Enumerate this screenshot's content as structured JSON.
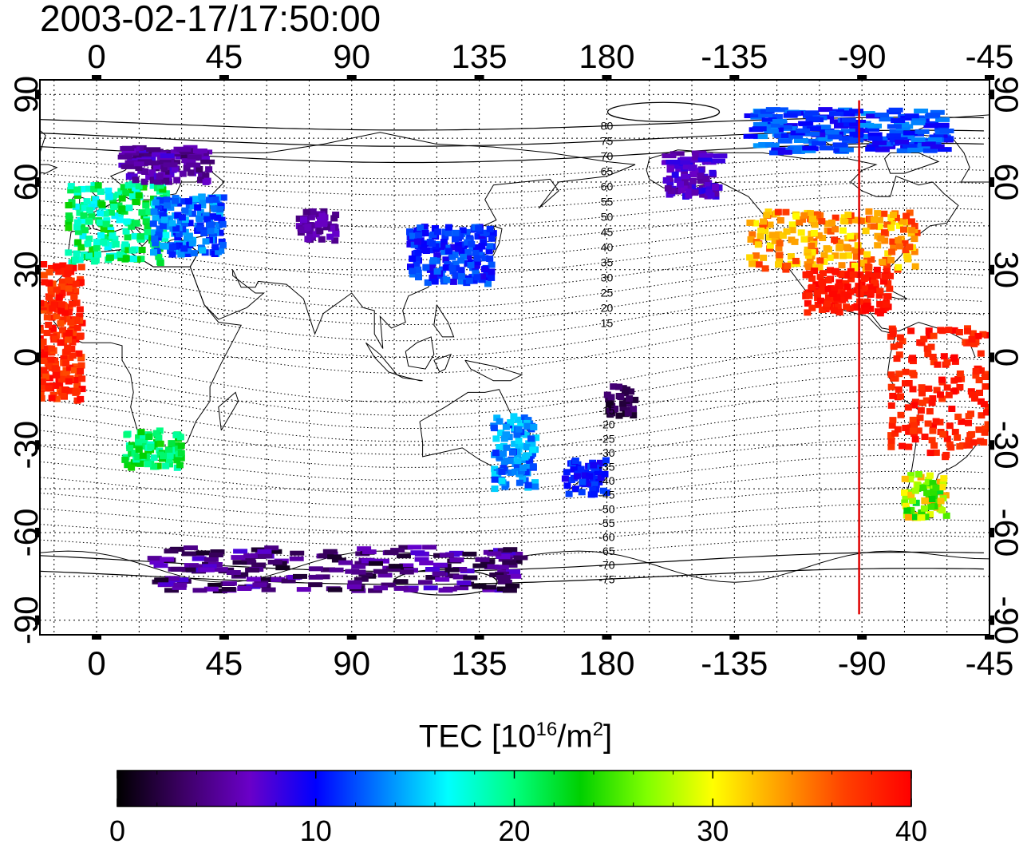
{
  "timestamp": "2003-02-17/17:50:00",
  "colorbar": {
    "title_prefix": "TEC  [10",
    "title_exp1": "16",
    "title_mid": "/m",
    "title_exp2": "2",
    "title_suffix": "]",
    "min": 0,
    "max": 40,
    "ticks": [
      "0",
      "10",
      "20",
      "30",
      "40"
    ],
    "colors": [
      "#000000",
      "#3d0066",
      "#6a00c8",
      "#0000ff",
      "#0080ff",
      "#00ffff",
      "#00ff80",
      "#00d000",
      "#80ff00",
      "#ffff00",
      "#ffa000",
      "#ff4000",
      "#ff0000"
    ]
  },
  "map": {
    "lon_ticks": [
      "0",
      "45",
      "90",
      "135",
      "180",
      "-135",
      "-90",
      "-45"
    ],
    "lat_ticks": [
      "90",
      "60",
      "30",
      "0",
      "-30",
      "-60",
      "-90"
    ],
    "lon_range": [
      -20,
      315
    ],
    "lat_range": [
      -95,
      95
    ],
    "marker_lon": -91,
    "marker_color": "#e00000",
    "contour_labels_north": [
      "80",
      "75",
      "70",
      "65",
      "60",
      "55",
      "50",
      "45",
      "40",
      "35",
      "30",
      "25",
      "20",
      "15"
    ],
    "contour_labels_south": [
      "-15",
      "-20",
      "-25",
      "-30",
      "-35",
      "-40",
      "-45",
      "-50",
      "-55",
      "-60",
      "-65",
      "-70",
      "-75"
    ]
  },
  "tec_data": {
    "type": "scatter",
    "units": "TECU",
    "clusters": [
      {
        "lon": [
          -10,
          25
        ],
        "lat": [
          32,
          60
        ],
        "tec": [
          16,
          24
        ]
      },
      {
        "lon": [
          10,
          40
        ],
        "lat": [
          60,
          72
        ],
        "tec": [
          3,
          8
        ]
      },
      {
        "lon": [
          20,
          45
        ],
        "lat": [
          35,
          55
        ],
        "tec": [
          10,
          15
        ]
      },
      {
        "lon": [
          -20,
          -5
        ],
        "lat": [
          -15,
          32
        ],
        "tec": [
          36,
          40
        ]
      },
      {
        "lon": [
          10,
          30
        ],
        "lat": [
          -38,
          -25
        ],
        "tec": [
          18,
          24
        ]
      },
      {
        "lon": [
          70,
          85
        ],
        "lat": [
          40,
          50
        ],
        "tec": [
          4,
          7
        ]
      },
      {
        "lon": [
          110,
          140
        ],
        "lat": [
          25,
          45
        ],
        "tec": [
          9,
          13
        ]
      },
      {
        "lon": [
          140,
          155
        ],
        "lat": [
          -45,
          -20
        ],
        "tec": [
          11,
          16
        ]
      },
      {
        "lon": [
          165,
          180
        ],
        "lat": [
          -47,
          -35
        ],
        "tec": [
          9,
          12
        ]
      },
      {
        "lon": [
          -180,
          -170
        ],
        "lat": [
          -20,
          -10
        ],
        "tec": [
          1,
          4
        ]
      },
      {
        "lon": [
          -160,
          -140
        ],
        "lat": [
          55,
          70
        ],
        "tec": [
          5,
          9
        ]
      },
      {
        "lon": [
          -130,
          -70
        ],
        "lat": [
          30,
          50
        ],
        "tec": [
          30,
          38
        ]
      },
      {
        "lon": [
          -110,
          -80
        ],
        "lat": [
          15,
          30
        ],
        "tec": [
          38,
          40
        ]
      },
      {
        "lon": [
          -80,
          -35
        ],
        "lat": [
          -35,
          10
        ],
        "tec": [
          37,
          40
        ]
      },
      {
        "lon": [
          -75,
          -60
        ],
        "lat": [
          -55,
          -40
        ],
        "tec": [
          22,
          34
        ]
      },
      {
        "lon": [
          -130,
          -60
        ],
        "lat": [
          70,
          85
        ],
        "tec": [
          9,
          14
        ]
      },
      {
        "lon": [
          20,
          150
        ],
        "lat": [
          -80,
          -65
        ],
        "tec": [
          1,
          8
        ]
      }
    ]
  }
}
